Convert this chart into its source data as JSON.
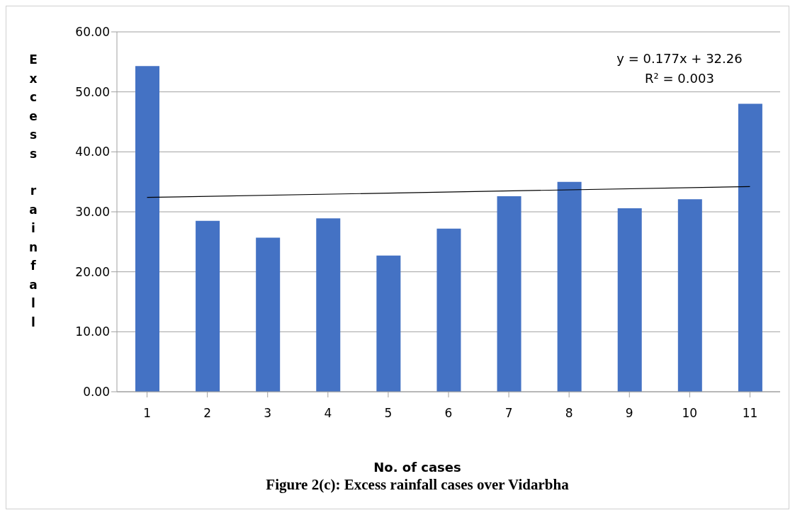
{
  "chart_data": {
    "type": "bar",
    "title": "Figure 2(c): Excess rainfall cases over Vidarbha",
    "xlabel": "No. of cases",
    "ylabel": "Excess rainfall",
    "categories": [
      "1",
      "2",
      "3",
      "4",
      "5",
      "6",
      "7",
      "8",
      "9",
      "10",
      "11"
    ],
    "series": [
      {
        "color": "#4472c4",
        "values": [
          54.3,
          28.5,
          25.7,
          28.9,
          22.7,
          27.2,
          32.6,
          35.0,
          30.6,
          32.1,
          48.0
        ]
      },
      {
        "type": "line",
        "color": "#000000",
        "values": [
          32.4,
          null,
          null,
          null,
          null,
          null,
          null,
          null,
          null,
          null,
          34.2
        ]
      }
    ],
    "ylim": [
      0,
      60
    ],
    "yticks": [
      {
        "value": 0,
        "label": "0.00"
      },
      {
        "value": 10,
        "label": "10.00"
      },
      {
        "value": 20,
        "label": "20.00"
      },
      {
        "value": 30,
        "label": "30.00"
      },
      {
        "value": 40,
        "label": "40.00"
      },
      {
        "value": 50,
        "label": "50.00"
      },
      {
        "value": 60,
        "label": "60.00"
      }
    ],
    "grid": "y",
    "annotations": [
      "y = 0.177x + 32.26",
      "R² = 0.003"
    ]
  }
}
